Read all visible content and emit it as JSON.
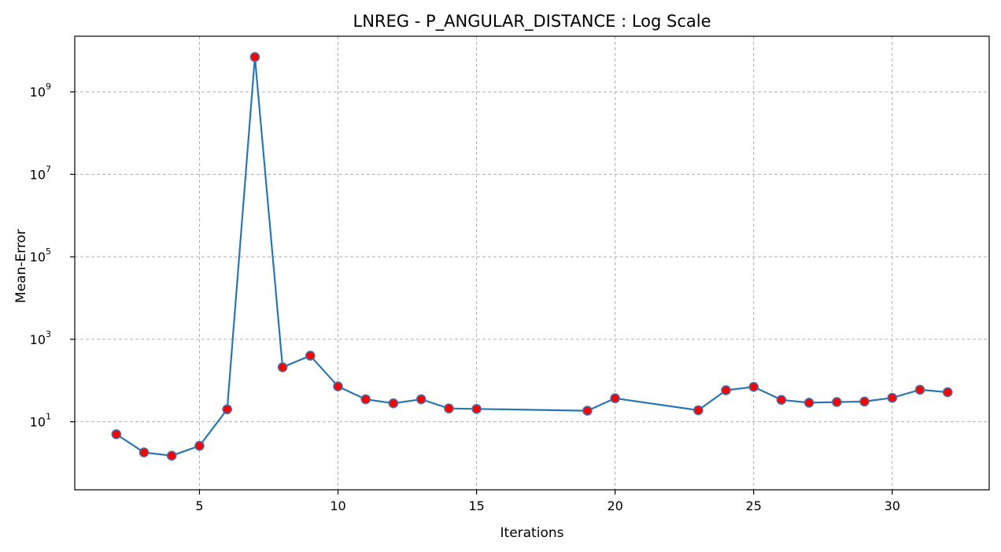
{
  "chart_data": {
    "type": "line",
    "title": "LNREG - P_ANGULAR_DISTANCE : Log Scale",
    "xlabel": "Iterations",
    "ylabel": "Mean-Error",
    "yscale": "log",
    "grid": true,
    "xlim": [
      0.5,
      33.5
    ],
    "ylim_log10": [
      -0.65,
      10.35
    ],
    "x_ticks": [
      5,
      10,
      15,
      20,
      25,
      30
    ],
    "y_ticks": [
      {
        "base": "10",
        "exp": "1",
        "log10": 1
      },
      {
        "base": "10",
        "exp": "3",
        "log10": 3
      },
      {
        "base": "10",
        "exp": "5",
        "log10": 5
      },
      {
        "base": "10",
        "exp": "7",
        "log10": 7
      },
      {
        "base": "10",
        "exp": "9",
        "log10": 9
      }
    ],
    "colors": {
      "line": "#2a77b0",
      "marker_fill": "#ff0000",
      "marker_edge": "#4a6fa5"
    },
    "series": [
      {
        "x": [
          2,
          3,
          4,
          5,
          6,
          7,
          8,
          9,
          10,
          11,
          12,
          13,
          14,
          15,
          19,
          20,
          23,
          24,
          25,
          26,
          27,
          28,
          29,
          30,
          31,
          32
        ],
        "y": [
          5,
          1.8,
          1.5,
          2.6,
          20,
          7000000000,
          210,
          400,
          72,
          35,
          28,
          35,
          21,
          20.5,
          18.5,
          37,
          19,
          58,
          70,
          34,
          29,
          30,
          31,
          38,
          60,
          52
        ]
      }
    ]
  }
}
